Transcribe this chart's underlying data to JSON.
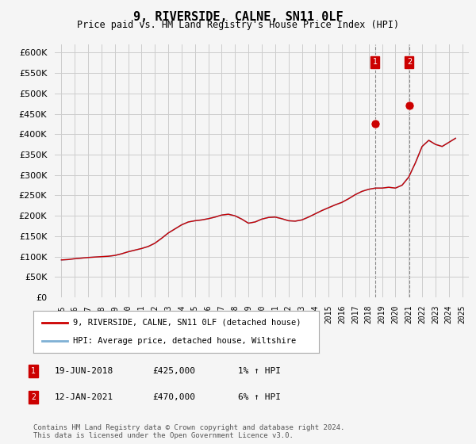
{
  "title": "9, RIVERSIDE, CALNE, SN11 0LF",
  "subtitle": "Price paid vs. HM Land Registry's House Price Index (HPI)",
  "hpi_years": [
    1995,
    1995.5,
    1996,
    1996.5,
    1997,
    1997.5,
    1998,
    1998.5,
    1999,
    1999.5,
    2000,
    2000.5,
    2001,
    2001.5,
    2002,
    2002.5,
    2003,
    2003.5,
    2004,
    2004.5,
    2005,
    2005.5,
    2006,
    2006.5,
    2007,
    2007.5,
    2008,
    2008.5,
    2009,
    2009.5,
    2010,
    2010.5,
    2011,
    2011.5,
    2012,
    2012.5,
    2013,
    2013.5,
    2014,
    2014.5,
    2015,
    2015.5,
    2016,
    2016.5,
    2017,
    2017.5,
    2018,
    2018.5,
    2019,
    2019.5,
    2020,
    2020.5,
    2021,
    2021.5,
    2022,
    2022.5,
    2023,
    2023.5,
    2024,
    2024.5
  ],
  "hpi_values": [
    92000,
    93000,
    95000,
    96500,
    98000,
    99000,
    100000,
    101000,
    103000,
    107000,
    112000,
    116000,
    120000,
    125000,
    133000,
    145000,
    158000,
    168000,
    178000,
    185000,
    188000,
    190000,
    193000,
    197000,
    202000,
    204000,
    200000,
    192000,
    182000,
    185000,
    192000,
    196000,
    197000,
    193000,
    188000,
    187000,
    190000,
    197000,
    205000,
    213000,
    220000,
    227000,
    233000,
    242000,
    252000,
    260000,
    265000,
    268000,
    268000,
    270000,
    268000,
    275000,
    295000,
    330000,
    370000,
    385000,
    375000,
    370000,
    380000,
    390000
  ],
  "sale_years": [
    2018.47,
    2021.04
  ],
  "sale_prices": [
    425000,
    470000
  ],
  "sale_labels": [
    "1",
    "2"
  ],
  "sale_dates": [
    "19-JUN-2018",
    "12-JAN-2021"
  ],
  "sale_amounts": [
    "£425,000",
    "£470,000"
  ],
  "sale_hpi_diff": [
    "1% ↑ HPI",
    "6% ↑ HPI"
  ],
  "line_color_red": "#cc0000",
  "line_color_blue": "#7fb0d4",
  "marker_color_red": "#cc0000",
  "background_color": "#f5f5f5",
  "grid_color": "#cccccc",
  "ylim": [
    0,
    620000
  ],
  "xlim": [
    1994.5,
    2025.5
  ],
  "yticks": [
    0,
    50000,
    100000,
    150000,
    200000,
    250000,
    300000,
    350000,
    400000,
    450000,
    500000,
    550000,
    600000
  ],
  "xticks": [
    1995,
    1996,
    1997,
    1998,
    1999,
    2000,
    2001,
    2002,
    2003,
    2004,
    2005,
    2006,
    2007,
    2008,
    2009,
    2010,
    2011,
    2012,
    2013,
    2014,
    2015,
    2016,
    2017,
    2018,
    2019,
    2020,
    2021,
    2022,
    2023,
    2024,
    2025
  ],
  "legend_label_red": "9, RIVERSIDE, CALNE, SN11 0LF (detached house)",
  "legend_label_blue": "HPI: Average price, detached house, Wiltshire",
  "footer": "Contains HM Land Registry data © Crown copyright and database right 2024.\nThis data is licensed under the Open Government Licence v3.0.",
  "dashed_line_color": "#888888"
}
